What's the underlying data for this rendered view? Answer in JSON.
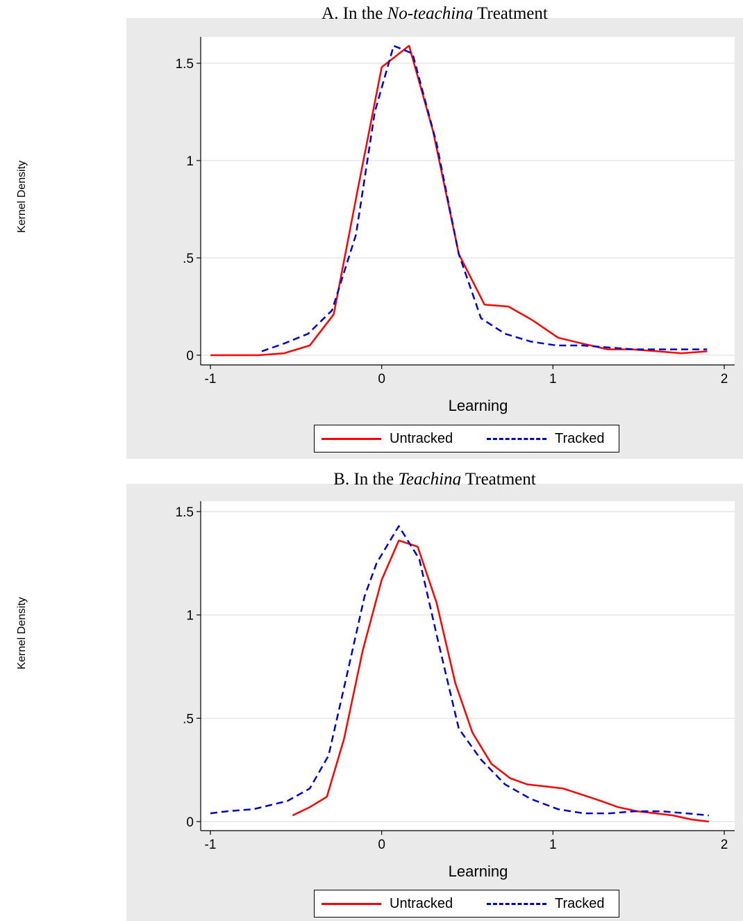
{
  "chart_data": [
    {
      "type": "line",
      "title_prefix": "A.  In the ",
      "title_italic": "No-teaching",
      "title_suffix": " Treatment",
      "xlabel": "Learning",
      "ylabel": "Kernel Density",
      "xlim": [
        -1,
        2
      ],
      "ylim": [
        0,
        1.5
      ],
      "x_ticks": [
        -1,
        0,
        1,
        2
      ],
      "x_tick_labels": [
        "-1",
        "0",
        "1",
        "2"
      ],
      "y_ticks": [
        0,
        0.5,
        1,
        1.5
      ],
      "y_tick_labels": [
        "0",
        ".5",
        "1",
        "1.5"
      ],
      "grid": true,
      "legend_position": "bottom",
      "series": [
        {
          "name": "Untracked",
          "color": "#ff0000",
          "style": "solid",
          "x": [
            -1.0,
            -0.86,
            -0.72,
            -0.57,
            -0.42,
            -0.28,
            -0.14,
            0.0,
            0.16,
            0.3,
            0.45,
            0.6,
            0.74,
            0.88,
            1.03,
            1.17,
            1.32,
            1.46,
            1.61,
            1.75,
            1.9
          ],
          "y": [
            0.0,
            0.0,
            0.0,
            0.01,
            0.05,
            0.21,
            0.85,
            1.48,
            1.59,
            1.15,
            0.52,
            0.26,
            0.25,
            0.18,
            0.09,
            0.06,
            0.03,
            0.03,
            0.02,
            0.01,
            0.02
          ]
        },
        {
          "name": "Tracked",
          "color": "#0000cd",
          "style": "dashed",
          "x": [
            -0.7,
            -0.57,
            -0.43,
            -0.29,
            -0.15,
            -0.04,
            0.07,
            0.18,
            0.32,
            0.45,
            0.58,
            0.72,
            0.87,
            1.02,
            1.17,
            1.32,
            1.47,
            1.62,
            1.76,
            1.9
          ],
          "y": [
            0.02,
            0.06,
            0.11,
            0.23,
            0.62,
            1.25,
            1.59,
            1.55,
            1.09,
            0.52,
            0.19,
            0.11,
            0.07,
            0.05,
            0.05,
            0.04,
            0.03,
            0.03,
            0.03,
            0.03
          ]
        }
      ]
    },
    {
      "type": "line",
      "title_prefix": "B.  In the ",
      "title_italic": "Teaching",
      "title_suffix": " Treatment",
      "xlabel": "Learning",
      "ylabel": "Kernel Density",
      "xlim": [
        -1,
        2
      ],
      "ylim": [
        0,
        1.5
      ],
      "x_ticks": [
        -1,
        0,
        1,
        2
      ],
      "x_tick_labels": [
        "-1",
        "0",
        "1",
        "2"
      ],
      "y_ticks": [
        0,
        0.5,
        1,
        1.5
      ],
      "y_tick_labels": [
        "0",
        ".5",
        "1",
        "1.5"
      ],
      "grid": true,
      "legend_position": "bottom",
      "series": [
        {
          "name": "Untracked",
          "color": "#ff0000",
          "style": "solid",
          "x": [
            -0.52,
            -0.42,
            -0.32,
            -0.22,
            -0.11,
            0.0,
            0.1,
            0.21,
            0.32,
            0.43,
            0.53,
            0.64,
            0.75,
            0.85,
            0.96,
            1.06,
            1.17,
            1.28,
            1.38,
            1.49,
            1.6,
            1.7,
            1.81,
            1.91
          ],
          "y": [
            0.03,
            0.07,
            0.12,
            0.4,
            0.83,
            1.17,
            1.36,
            1.33,
            1.06,
            0.67,
            0.43,
            0.28,
            0.21,
            0.18,
            0.17,
            0.16,
            0.13,
            0.1,
            0.07,
            0.05,
            0.04,
            0.03,
            0.01,
            0.0
          ]
        },
        {
          "name": "Tracked",
          "color": "#0000cd",
          "style": "dashed",
          "x": [
            -1.0,
            -0.9,
            -0.75,
            -0.55,
            -0.42,
            -0.31,
            -0.2,
            -0.1,
            -0.03,
            0.1,
            0.22,
            0.33,
            0.45,
            0.58,
            0.72,
            0.87,
            1.03,
            1.18,
            1.33,
            1.48,
            1.63,
            1.78,
            1.91
          ],
          "y": [
            0.04,
            0.05,
            0.06,
            0.1,
            0.16,
            0.32,
            0.72,
            1.09,
            1.25,
            1.43,
            1.27,
            0.87,
            0.45,
            0.3,
            0.18,
            0.11,
            0.06,
            0.04,
            0.04,
            0.05,
            0.05,
            0.04,
            0.03
          ]
        }
      ]
    }
  ]
}
